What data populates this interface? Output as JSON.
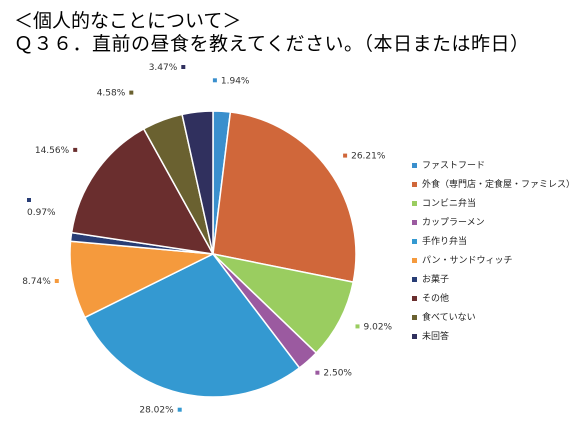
{
  "header": {
    "section_title": "＜個人的なことについて＞",
    "question_title": "Ｑ３６．直前の昼食を教えてください。（本日または昨日）"
  },
  "chart_data": {
    "type": "pie",
    "title": "",
    "legend_position": "right",
    "categories": [
      "ファストフード",
      "外食（専門店・定食屋・ファミレス）",
      "コンビニ弁当",
      "カップラーメン",
      "手作り弁当",
      "パン・サンドウィッチ",
      "お菓子",
      "その他",
      "食べていない",
      "未回答"
    ],
    "values": [
      1.94,
      26.21,
      9.02,
      2.5,
      28.02,
      8.74,
      0.97,
      14.56,
      4.58,
      3.47
    ],
    "labels": [
      "1.94%",
      "26.21%",
      "9.02%",
      "2.50%",
      "28.02%",
      "8.74%",
      "0.97%",
      "14.56%",
      "4.58%",
      "3.47%"
    ],
    "colors": [
      "#3a8fcd",
      "#d0673a",
      "#9acd60",
      "#9b5aa0",
      "#3499d1",
      "#f59a3d",
      "#283d75",
      "#6a2e2e",
      "#6a6130",
      "#30305e"
    ]
  }
}
